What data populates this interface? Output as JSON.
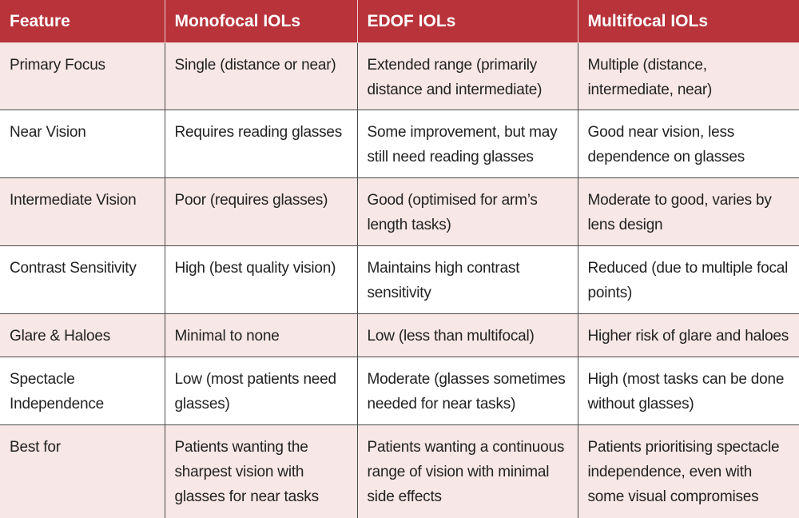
{
  "table": {
    "headers": [
      "Feature",
      "Monofocal IOLs",
      "EDOF IOLs",
      "Multifocal IOLs"
    ],
    "rows": [
      [
        "Primary Focus",
        "Single (distance or near)",
        "Extended range (primarily distance and intermediate)",
        "Multiple (distance, intermediate, near)"
      ],
      [
        "Near Vision",
        "Requires reading glasses",
        "Some improvement, but may still need reading glasses",
        "Good near vision, less dependence on glasses"
      ],
      [
        "Intermediate Vision",
        "Poor (requires glasses)",
        "Good (optimised for arm’s length tasks)",
        "Moderate to good, varies by lens design"
      ],
      [
        "Contrast Sensitivity",
        "High (best quality vision)",
        "Maintains high contrast sensitivity",
        "Reduced (due to multiple focal points)"
      ],
      [
        "Glare & Haloes",
        "Minimal to none",
        "Low (less than multifocal)",
        "Higher risk of glare and haloes"
      ],
      [
        "Spectacle Independence",
        "Low (most patients need glasses)",
        "Moderate (glasses sometimes needed for near tasks)",
        "High (most tasks can be done without glasses)"
      ],
      [
        "Best for",
        "Patients wanting the sharpest vision with glasses for near tasks",
        "Patients wanting a continuous range of vision with minimal side effects",
        "Patients prioritising spectacle independence, even with some visual compromises"
      ]
    ]
  },
  "colors": {
    "header_bg": "#b8333a",
    "header_text": "#ffffff",
    "row_tint": "#f7e7e6",
    "row_plain": "#ffffff",
    "border": "#4a4a4a"
  }
}
